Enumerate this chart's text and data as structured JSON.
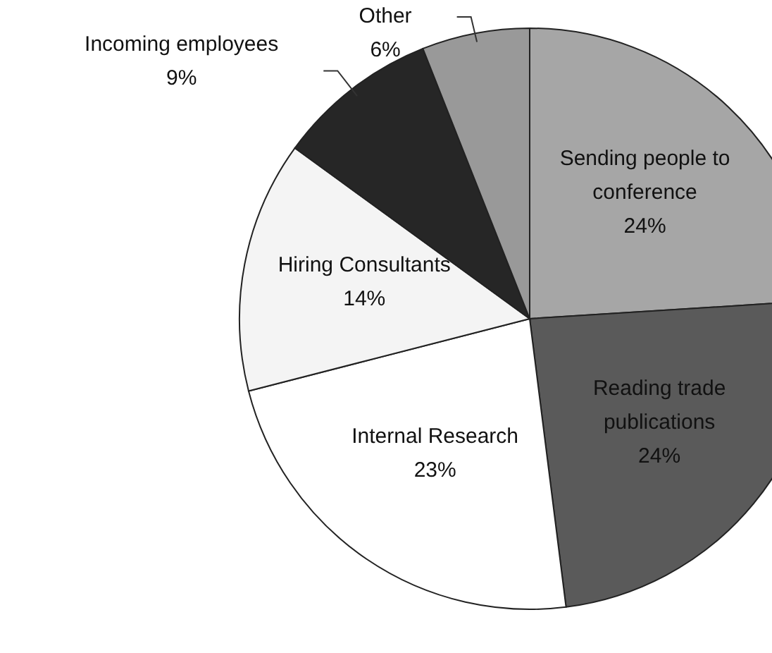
{
  "chart_data": {
    "type": "pie",
    "categories": [
      "Sending people to conference",
      "Reading trade publications",
      "Internal Research",
      "Hiring Consultants",
      "Incoming employees",
      "Other"
    ],
    "values": [
      24,
      24,
      23,
      14,
      9,
      6
    ],
    "colors": [
      "#a6a6a6",
      "#5a5a5a",
      "#ffffff",
      "#f4f4f4",
      "#262626",
      "#999999"
    ],
    "value_labels": [
      "24%",
      "24%",
      "23%",
      "14%",
      "9%",
      "6%"
    ]
  }
}
